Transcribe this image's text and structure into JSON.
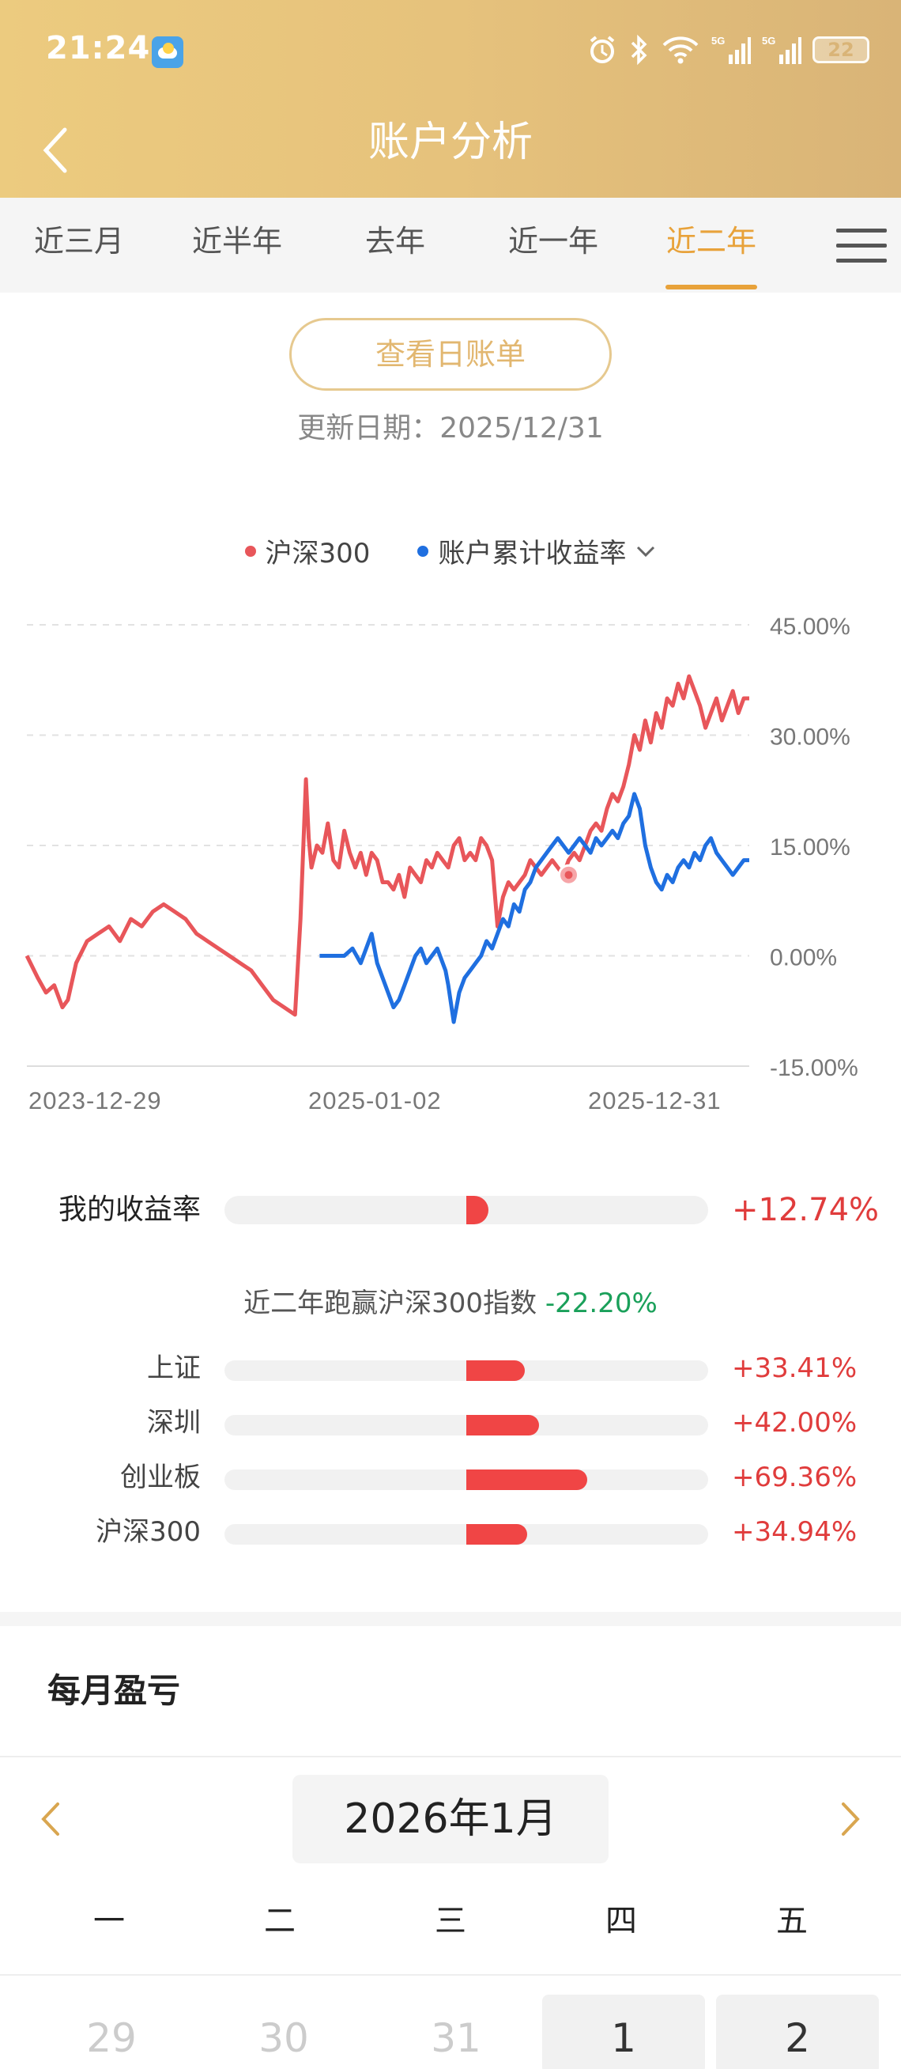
{
  "status": {
    "time": "21:24",
    "battery": "22"
  },
  "nav": {
    "title": "账户分析"
  },
  "tabs": [
    {
      "label": "近三月",
      "active": false
    },
    {
      "label": "近半年",
      "active": false
    },
    {
      "label": "去年",
      "active": false
    },
    {
      "label": "近一年",
      "active": false
    },
    {
      "label": "近二年",
      "active": true
    }
  ],
  "bill_button": "查看日账单",
  "update_date": "更新日期：2025/12/31",
  "legend": {
    "index_name": "沪深300",
    "index_color": "#e8565a",
    "account_name": "账户累计收益率",
    "account_color": "#1f6fe0"
  },
  "chart_data": {
    "type": "line",
    "x_tick_labels": [
      "2023-12-29",
      "2025-01-02",
      "2025-12-31"
    ],
    "y_tick_labels": [
      "45.00%",
      "30.00%",
      "15.00%",
      "0.00%",
      "-15.00%"
    ],
    "ylim": [
      -15,
      45
    ],
    "grid": "dashed horizontal",
    "series": [
      {
        "name": "沪深300",
        "color": "#e8565a",
        "x": [
          0,
          8,
          14,
          20,
          26,
          30,
          36,
          44,
          52,
          60,
          68,
          76,
          84,
          92,
          100,
          108,
          116,
          124,
          132,
          140,
          148,
          156,
          164,
          172,
          180,
          188,
          196,
          200,
          204,
          206,
          208,
          212,
          216,
          220,
          224,
          228,
          232,
          236,
          240,
          244,
          248,
          252,
          256,
          260,
          264,
          268,
          272,
          276,
          280,
          284,
          288,
          292,
          296,
          300,
          304,
          308,
          312,
          316,
          320,
          324,
          328,
          332,
          336,
          340,
          344,
          348,
          352,
          356,
          360,
          364,
          368,
          372,
          376,
          380,
          384,
          388,
          392,
          396,
          400,
          404,
          408,
          412,
          416,
          420,
          424,
          428,
          432,
          436,
          440,
          444,
          448,
          452,
          456,
          460,
          464,
          468,
          472,
          476,
          480,
          484,
          488,
          492,
          496,
          500,
          504,
          508,
          512,
          516,
          520,
          524,
          528
        ],
        "values": [
          0,
          -3,
          -5,
          -4,
          -7,
          -6,
          -1,
          2,
          3,
          4,
          2,
          5,
          4,
          6,
          7,
          6,
          5,
          3,
          2,
          1,
          0,
          -1,
          -2,
          -4,
          -6,
          -7,
          -8,
          5,
          24,
          16,
          12,
          15,
          14,
          18,
          13,
          12,
          17,
          14,
          12,
          14,
          11,
          14,
          13,
          10,
          10,
          9,
          11,
          8,
          12,
          11,
          10,
          13,
          12,
          14,
          13,
          12,
          15,
          16,
          13,
          14,
          13,
          16,
          15,
          13,
          4,
          8,
          10,
          9,
          10,
          11,
          13,
          12,
          11,
          12,
          13,
          12,
          11,
          13,
          14,
          13,
          15,
          17,
          18,
          17,
          20,
          22,
          21,
          23,
          26,
          30,
          28,
          32,
          29,
          33,
          31,
          35,
          34,
          37,
          35,
          38,
          36,
          34,
          31,
          33,
          35,
          32,
          34,
          36,
          33,
          35,
          35
        ],
        "x_note": "x is trading-day index within the two-year window"
      },
      {
        "name": "账户累计收益率",
        "color": "#1f6fe0",
        "x": [
          214,
          220,
          226,
          232,
          238,
          244,
          248,
          252,
          256,
          260,
          264,
          268,
          272,
          276,
          280,
          284,
          288,
          292,
          296,
          300,
          304,
          306,
          308,
          312,
          316,
          320,
          324,
          328,
          332,
          336,
          340,
          344,
          348,
          352,
          356,
          360,
          364,
          368,
          372,
          376,
          380,
          384,
          388,
          392,
          396,
          400,
          404,
          408,
          412,
          416,
          420,
          424,
          428,
          432,
          436,
          440,
          444,
          448,
          452,
          456,
          460,
          464,
          468,
          472,
          476,
          480,
          484,
          488,
          492,
          496,
          500,
          504,
          508,
          512,
          516,
          520,
          524,
          528
        ],
        "values": [
          0,
          0,
          0,
          0,
          1,
          -1,
          1,
          3,
          -1,
          -3,
          -5,
          -7,
          -6,
          -4,
          -2,
          0,
          1,
          -1,
          0,
          1,
          -1,
          -2,
          -4,
          -9,
          -5,
          -3,
          -2,
          -1,
          0,
          2,
          1,
          3,
          5,
          4,
          7,
          6,
          9,
          10,
          12,
          13,
          14,
          15,
          16,
          15,
          14,
          15,
          16,
          15,
          14,
          16,
          15,
          16,
          17,
          16,
          18,
          19,
          22,
          20,
          15,
          12,
          10,
          9,
          11,
          10,
          12,
          13,
          12,
          14,
          13,
          15,
          16,
          14,
          13,
          12,
          11,
          12,
          13,
          13
        ]
      }
    ],
    "marker": {
      "series": "沪深300",
      "x": 396,
      "value": 11
    }
  },
  "comparison": {
    "my_return_label": "我的收益率",
    "my_return_value": "+12.74%",
    "my_return_fraction": 0.1274,
    "beat_text": "近二年跑赢沪深300指数",
    "beat_value": "-22.20%",
    "indices": [
      {
        "label": "上证",
        "value": "+33.41%",
        "fraction": 0.3341
      },
      {
        "label": "深圳",
        "value": "+42.00%",
        "fraction": 0.42
      },
      {
        "label": "创业板",
        "value": "+69.36%",
        "fraction": 0.6936
      },
      {
        "label": "沪深300",
        "value": "+34.94%",
        "fraction": 0.3494
      }
    ]
  },
  "monthly": {
    "title": "每月盈亏",
    "month_label": "2026年1月",
    "weekdays": [
      "一",
      "二",
      "三",
      "四",
      "五"
    ],
    "days": [
      {
        "day": "29",
        "current": false
      },
      {
        "day": "30",
        "current": false
      },
      {
        "day": "31",
        "current": false
      },
      {
        "day": "1",
        "current": true
      },
      {
        "day": "2",
        "current": true
      }
    ]
  }
}
